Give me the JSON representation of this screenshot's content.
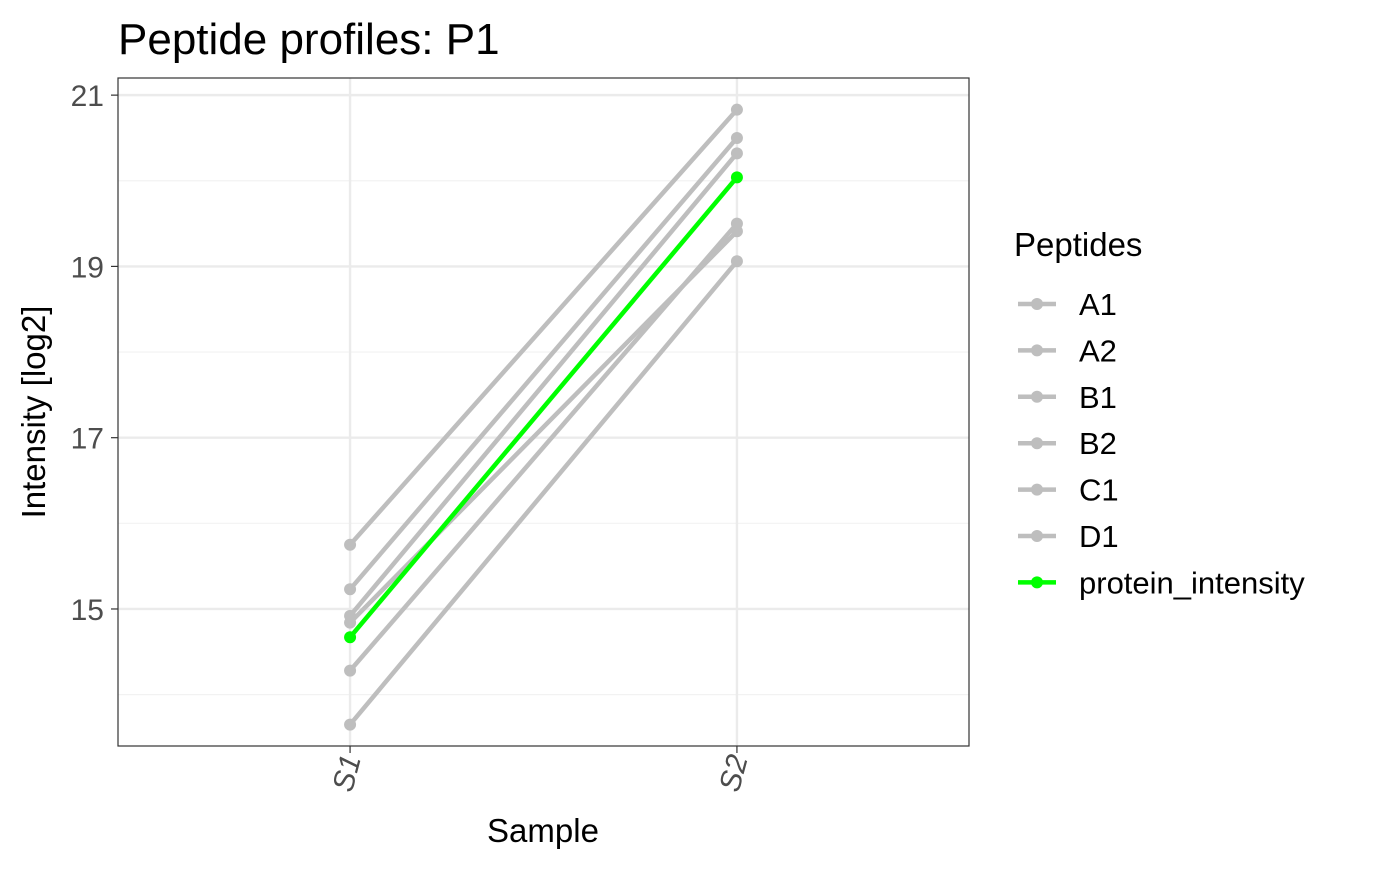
{
  "chart_data": {
    "type": "line",
    "title": "Peptide profiles: P1",
    "xlabel": "Sample",
    "ylabel": "Intensity [log2]",
    "categories": [
      "S1",
      "S2"
    ],
    "ylim": [
      13.4,
      21.2
    ],
    "yticks": [
      15,
      17,
      19,
      21
    ],
    "grid": true,
    "legend": {
      "title": "Peptides",
      "position": "right"
    },
    "series": [
      {
        "name": "A1",
        "values": [
          15.75,
          20.83
        ],
        "color": "#bebebe"
      },
      {
        "name": "A2",
        "values": [
          15.23,
          20.5
        ],
        "color": "#bebebe"
      },
      {
        "name": "B1",
        "values": [
          14.92,
          20.32
        ],
        "color": "#bebebe"
      },
      {
        "name": "B2",
        "values": [
          14.84,
          19.41
        ],
        "color": "#bebebe"
      },
      {
        "name": "C1",
        "values": [
          14.28,
          19.5
        ],
        "color": "#bebebe"
      },
      {
        "name": "D1",
        "values": [
          13.65,
          19.06
        ],
        "color": "#bebebe"
      },
      {
        "name": "protein_intensity",
        "values": [
          14.67,
          20.04
        ],
        "color": "#00ff00"
      }
    ]
  }
}
